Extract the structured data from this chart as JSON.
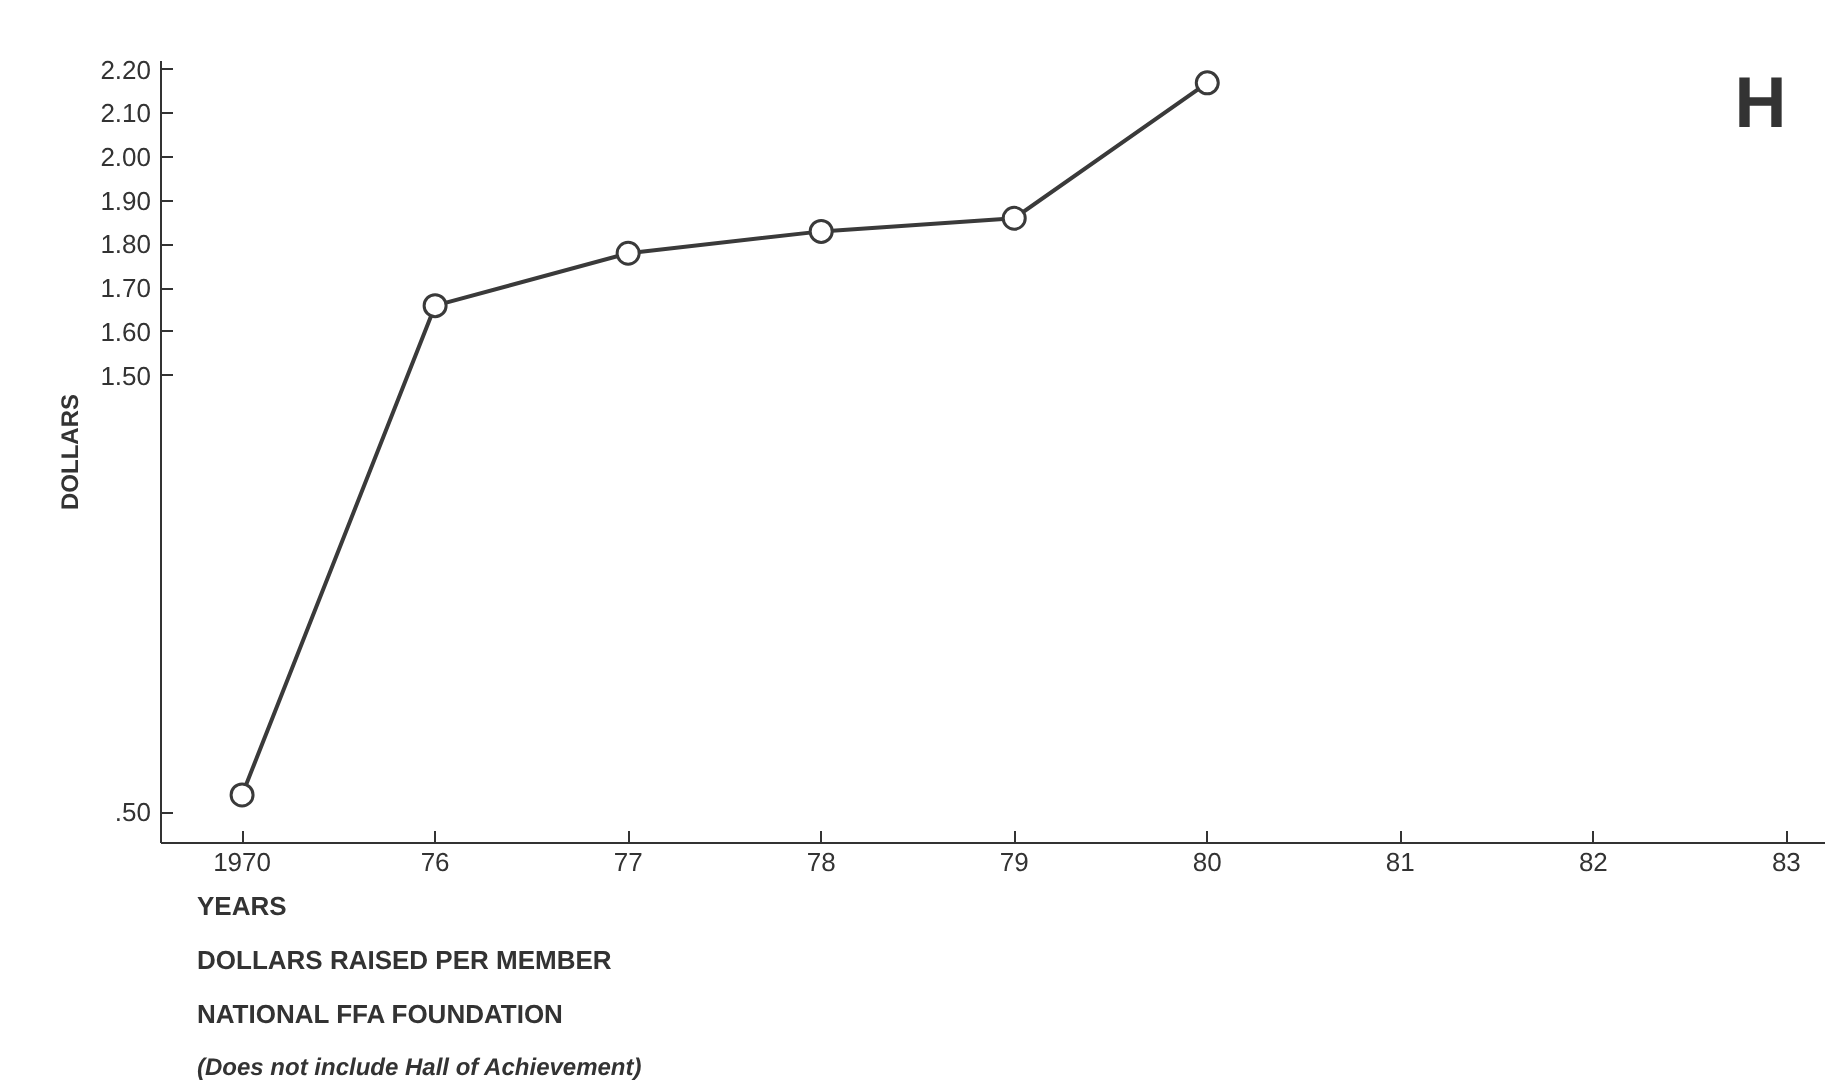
{
  "chart_data": {
    "type": "line",
    "title": "DOLLARS RAISED PER MEMBER\nNATIONAL FFA FOUNDATION",
    "xlabel": "YEARS",
    "ylabel": "DOLLARS",
    "categories": [
      "1970",
      "76",
      "77",
      "78",
      "79",
      "80",
      "81",
      "82",
      "83"
    ],
    "series": [
      {
        "color": "#3a3a3a",
        "values": [
          0.54,
          1.66,
          1.78,
          1.83,
          1.86,
          2.17,
          null,
          null,
          null
        ]
      }
    ],
    "ylim": [
      0.43,
      2.22
    ],
    "yticks": [
      {
        "value": 0.5,
        "label": ".50"
      },
      {
        "value": 1.5,
        "label": "1.50"
      },
      {
        "value": 1.6,
        "label": "1.60"
      },
      {
        "value": 1.7,
        "label": "1.70"
      },
      {
        "value": 1.8,
        "label": "1.80"
      },
      {
        "value": 1.9,
        "label": "1.90"
      },
      {
        "value": 2.0,
        "label": "2.00"
      },
      {
        "value": 2.1,
        "label": "2.10"
      },
      {
        "value": 2.2,
        "label": "2.20"
      }
    ],
    "marker": "circle",
    "line_style": "solid",
    "grid": false,
    "annotations": [
      "H",
      "(Does not include Hall of Achievement)"
    ]
  }
}
